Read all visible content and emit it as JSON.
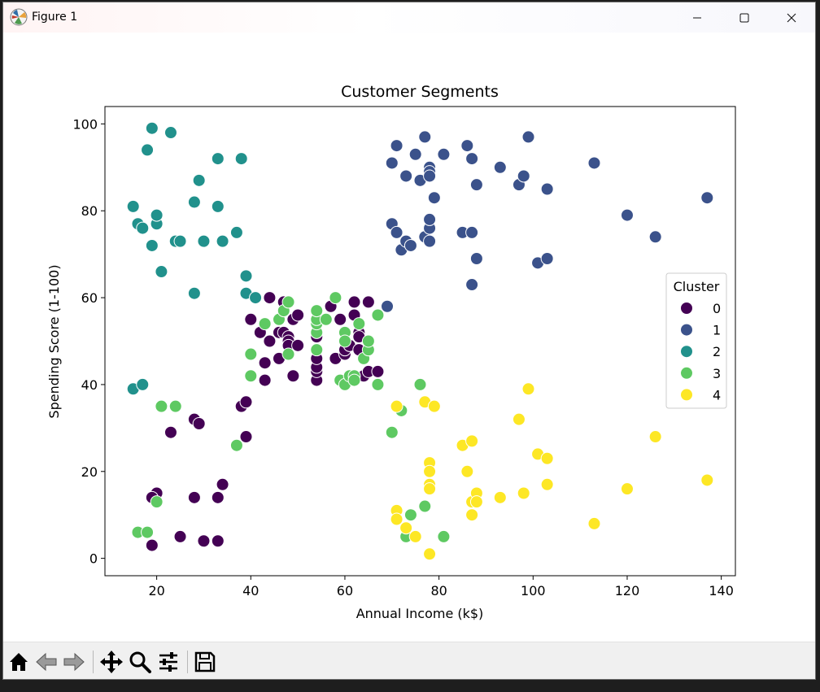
{
  "window": {
    "title": "Figure 1"
  },
  "toolbar": {
    "buttons": [
      {
        "name": "home-icon"
      },
      {
        "name": "back-arrow-icon"
      },
      {
        "name": "forward-arrow-icon"
      },
      {
        "name": "pan-icon"
      },
      {
        "name": "zoom-icon"
      },
      {
        "name": "configure-subplots-icon"
      },
      {
        "name": "save-icon"
      }
    ]
  },
  "chart_data": {
    "type": "scatter",
    "title": "Customer Segments",
    "xlabel": "Annual Income (k$)",
    "ylabel": "Spending Score (1-100)",
    "xlim": [
      9,
      143
    ],
    "ylim": [
      -4,
      104
    ],
    "xticks": [
      "20",
      "40",
      "60",
      "80",
      "100",
      "120",
      "140"
    ],
    "yticks": [
      "0",
      "20",
      "40",
      "60",
      "80",
      "100"
    ],
    "grid": false,
    "legend": {
      "title": "Cluster",
      "position": "center-right"
    },
    "series": [
      {
        "name": "0",
        "color": "#440154",
        "points": [
          [
            19,
            3
          ],
          [
            20,
            15
          ],
          [
            19,
            14
          ],
          [
            23,
            29
          ],
          [
            25,
            5
          ],
          [
            28,
            14
          ],
          [
            28,
            32
          ],
          [
            29,
            31
          ],
          [
            30,
            4
          ],
          [
            33,
            4
          ],
          [
            33,
            14
          ],
          [
            34,
            17
          ],
          [
            38,
            35
          ],
          [
            39,
            28
          ],
          [
            39,
            36
          ],
          [
            40,
            55
          ],
          [
            42,
            52
          ],
          [
            43,
            45
          ],
          [
            43,
            41
          ],
          [
            44,
            50
          ],
          [
            44,
            60
          ],
          [
            46,
            46
          ],
          [
            46,
            52
          ],
          [
            47,
            59
          ],
          [
            47,
            52
          ],
          [
            48,
            51
          ],
          [
            48,
            50
          ],
          [
            48,
            49
          ],
          [
            49,
            42
          ],
          [
            49,
            55
          ],
          [
            50,
            49
          ],
          [
            50,
            56
          ],
          [
            54,
            41
          ],
          [
            54,
            43
          ],
          [
            54,
            44
          ],
          [
            54,
            46
          ],
          [
            54,
            51
          ],
          [
            57,
            58
          ],
          [
            58,
            46
          ],
          [
            59,
            55
          ],
          [
            60,
            47
          ],
          [
            60,
            48
          ],
          [
            61,
            49
          ],
          [
            62,
            56
          ],
          [
            62,
            59
          ],
          [
            63,
            52
          ],
          [
            63,
            48
          ],
          [
            63,
            51
          ],
          [
            64,
            42
          ],
          [
            65,
            59
          ],
          [
            65,
            43
          ],
          [
            67,
            43
          ]
        ]
      },
      {
        "name": "1",
        "color": "#3b528b",
        "points": [
          [
            69,
            58
          ],
          [
            70,
            77
          ],
          [
            70,
            91
          ],
          [
            71,
            95
          ],
          [
            71,
            75
          ],
          [
            72,
            71
          ],
          [
            73,
            73
          ],
          [
            73,
            88
          ],
          [
            74,
            72
          ],
          [
            75,
            93
          ],
          [
            76,
            87
          ],
          [
            77,
            97
          ],
          [
            77,
            74
          ],
          [
            78,
            90
          ],
          [
            78,
            76
          ],
          [
            78,
            89
          ],
          [
            78,
            78
          ],
          [
            78,
            73
          ],
          [
            78,
            88
          ],
          [
            79,
            83
          ],
          [
            81,
            93
          ],
          [
            85,
            75
          ],
          [
            86,
            95
          ],
          [
            87,
            63
          ],
          [
            87,
            75
          ],
          [
            87,
            92
          ],
          [
            88,
            86
          ],
          [
            88,
            69
          ],
          [
            93,
            90
          ],
          [
            97,
            86
          ],
          [
            98,
            88
          ],
          [
            99,
            97
          ],
          [
            101,
            68
          ],
          [
            103,
            85
          ],
          [
            103,
            69
          ],
          [
            113,
            91
          ],
          [
            120,
            79
          ],
          [
            126,
            74
          ],
          [
            137,
            83
          ]
        ]
      },
      {
        "name": "2",
        "color": "#21918c",
        "points": [
          [
            15,
            39
          ],
          [
            15,
            81
          ],
          [
            16,
            77
          ],
          [
            17,
            40
          ],
          [
            17,
            76
          ],
          [
            18,
            94
          ],
          [
            19,
            72
          ],
          [
            19,
            99
          ],
          [
            20,
            77
          ],
          [
            20,
            79
          ],
          [
            21,
            66
          ],
          [
            23,
            98
          ],
          [
            24,
            73
          ],
          [
            25,
            73
          ],
          [
            28,
            82
          ],
          [
            28,
            61
          ],
          [
            29,
            87
          ],
          [
            30,
            73
          ],
          [
            33,
            92
          ],
          [
            33,
            81
          ],
          [
            34,
            73
          ],
          [
            37,
            75
          ],
          [
            38,
            92
          ],
          [
            39,
            65
          ],
          [
            39,
            61
          ],
          [
            41,
            60
          ]
        ]
      },
      {
        "name": "3",
        "color": "#5ec962",
        "points": [
          [
            16,
            6
          ],
          [
            18,
            6
          ],
          [
            20,
            13
          ],
          [
            21,
            35
          ],
          [
            24,
            35
          ],
          [
            37,
            26
          ],
          [
            40,
            47
          ],
          [
            40,
            42
          ],
          [
            43,
            54
          ],
          [
            46,
            55
          ],
          [
            47,
            57
          ],
          [
            48,
            47
          ],
          [
            48,
            59
          ],
          [
            54,
            52
          ],
          [
            54,
            54
          ],
          [
            54,
            55
          ],
          [
            54,
            57
          ],
          [
            54,
            48
          ],
          [
            56,
            55
          ],
          [
            58,
            60
          ],
          [
            59,
            41
          ],
          [
            60,
            52
          ],
          [
            60,
            50
          ],
          [
            60,
            40
          ],
          [
            61,
            42
          ],
          [
            62,
            42
          ],
          [
            62,
            41
          ],
          [
            63,
            54
          ],
          [
            64,
            46
          ],
          [
            65,
            48
          ],
          [
            65,
            50
          ],
          [
            67,
            40
          ],
          [
            67,
            56
          ],
          [
            70,
            29
          ],
          [
            72,
            34
          ],
          [
            73,
            5
          ],
          [
            74,
            10
          ],
          [
            76,
            40
          ],
          [
            77,
            12
          ],
          [
            81,
            5
          ]
        ]
      },
      {
        "name": "4",
        "color": "#fde725",
        "points": [
          [
            71,
            35
          ],
          [
            71,
            11
          ],
          [
            71,
            9
          ],
          [
            73,
            7
          ],
          [
            75,
            5
          ],
          [
            77,
            36
          ],
          [
            78,
            22
          ],
          [
            78,
            17
          ],
          [
            78,
            16
          ],
          [
            78,
            20
          ],
          [
            78,
            1
          ],
          [
            79,
            35
          ],
          [
            85,
            26
          ],
          [
            86,
            20
          ],
          [
            87,
            27
          ],
          [
            87,
            13
          ],
          [
            87,
            10
          ],
          [
            88,
            15
          ],
          [
            88,
            13
          ],
          [
            93,
            14
          ],
          [
            97,
            32
          ],
          [
            98,
            15
          ],
          [
            99,
            39
          ],
          [
            101,
            24
          ],
          [
            103,
            23
          ],
          [
            103,
            17
          ],
          [
            113,
            8
          ],
          [
            120,
            16
          ],
          [
            126,
            28
          ],
          [
            137,
            18
          ]
        ]
      }
    ]
  }
}
